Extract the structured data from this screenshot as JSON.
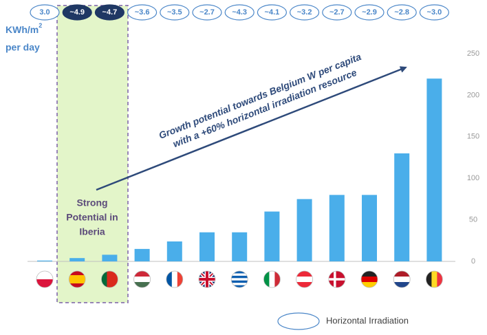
{
  "chart_data": {
    "type": "bar",
    "categories": [
      null,
      null,
      null,
      null,
      null,
      null,
      null,
      null,
      null,
      null,
      null,
      null,
      null
    ],
    "values": [
      1,
      4,
      8,
      15,
      24,
      35,
      35,
      60,
      75,
      80,
      80,
      130,
      220
    ],
    "color": "#4aaeea",
    "ylim": [
      0,
      250
    ],
    "yticks": [
      0,
      50,
      100,
      150,
      200,
      250
    ],
    "irradiation": {
      "name": "Horizontal Irradiation",
      "unit": "KWh/m",
      "unit_superscript": "2",
      "unit_line2": "per day",
      "labels": [
        "3.0",
        "~4.9",
        "~4.7",
        "~3.6",
        "~3.5",
        "~2.7",
        "~4.3",
        "~4.1",
        "~3.2",
        "~2.7",
        "~2.9",
        "~2.8",
        "~3.0"
      ]
    },
    "annotations": {
      "arrow_line1": "Growth potential towards Belgium W per capita",
      "arrow_line2": "with a +60% horizontal irradiation resource",
      "iberia": [
        "Strong",
        "Potential in",
        "Iberia"
      ]
    }
  }
}
